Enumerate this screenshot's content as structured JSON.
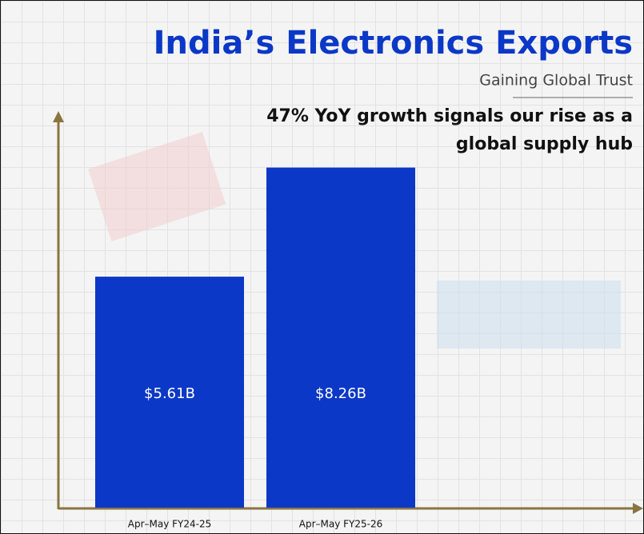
{
  "chart_data": {
    "type": "bar",
    "title": "India’s Electronics Exports",
    "subtitle": "Gaining Global Trust",
    "annotation": [
      "47% YoY growth signals our rise as a",
      "global supply hub"
    ],
    "categories": [
      "Apr–May FY24-25",
      "Apr–May FY25-26"
    ],
    "values": [
      5.61,
      8.26
    ],
    "value_labels": [
      "$5.61B",
      "$8.26B"
    ],
    "color": "#0b38c6"
  }
}
